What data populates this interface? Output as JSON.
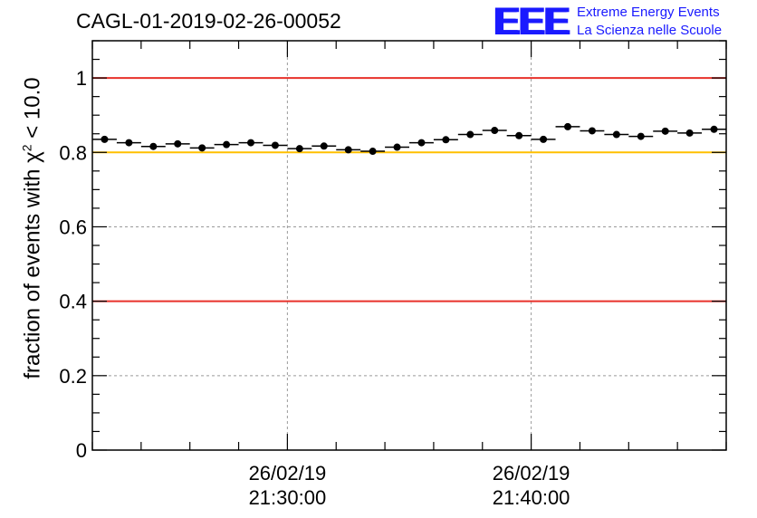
{
  "header": {
    "title": "CAGL-01-2019-02-26-00052",
    "logo_mark": "EEE",
    "logo_line1": "Extreme Energy Events",
    "logo_line2": "La Scienza nelle Scuole"
  },
  "chart_data": {
    "type": "scatter",
    "title": "CAGL-01-2019-02-26-00052",
    "ylabel_prefix": "fraction of events with",
    "ylabel_symbol": "χ",
    "ylabel_exp": "2",
    "ylabel_suffix": "< 10.0",
    "xlabel": "",
    "ylim": [
      0,
      1.1
    ],
    "xlim_minutes": [
      0,
      26
    ],
    "x_ticks": [
      {
        "minute": 8,
        "date": "26/02/19",
        "time": "21:30:00"
      },
      {
        "minute": 18,
        "date": "26/02/19",
        "time": "21:40:00"
      }
    ],
    "y_ticks": [
      {
        "value": 0,
        "label": "0"
      },
      {
        "value": 0.2,
        "label": "0.2"
      },
      {
        "value": 0.4,
        "label": "0.4"
      },
      {
        "value": 0.6,
        "label": "0.6"
      },
      {
        "value": 0.8,
        "label": "0.8"
      },
      {
        "value": 1,
        "label": "1"
      }
    ],
    "grid": true,
    "reference_lines": [
      {
        "value": 1.0,
        "color": "#e8312a"
      },
      {
        "value": 0.8,
        "color": "#ffc000"
      },
      {
        "value": 0.4,
        "color": "#e8312a"
      }
    ],
    "bin_width_minutes": 1,
    "x_minutes": [
      0.5,
      1.5,
      2.5,
      3.5,
      4.5,
      5.5,
      6.5,
      7.5,
      8.5,
      9.5,
      10.5,
      11.5,
      12.5,
      13.5,
      14.5,
      15.5,
      16.5,
      17.5,
      18.5,
      19.5,
      20.5,
      21.5,
      22.5,
      23.5,
      24.5,
      25.5
    ],
    "values": [
      0.835,
      0.826,
      0.816,
      0.823,
      0.812,
      0.821,
      0.826,
      0.819,
      0.81,
      0.817,
      0.807,
      0.803,
      0.814,
      0.826,
      0.834,
      0.848,
      0.859,
      0.845,
      0.835,
      0.869,
      0.858,
      0.848,
      0.843,
      0.857,
      0.852,
      0.862
    ],
    "marker_color": "#000000"
  }
}
